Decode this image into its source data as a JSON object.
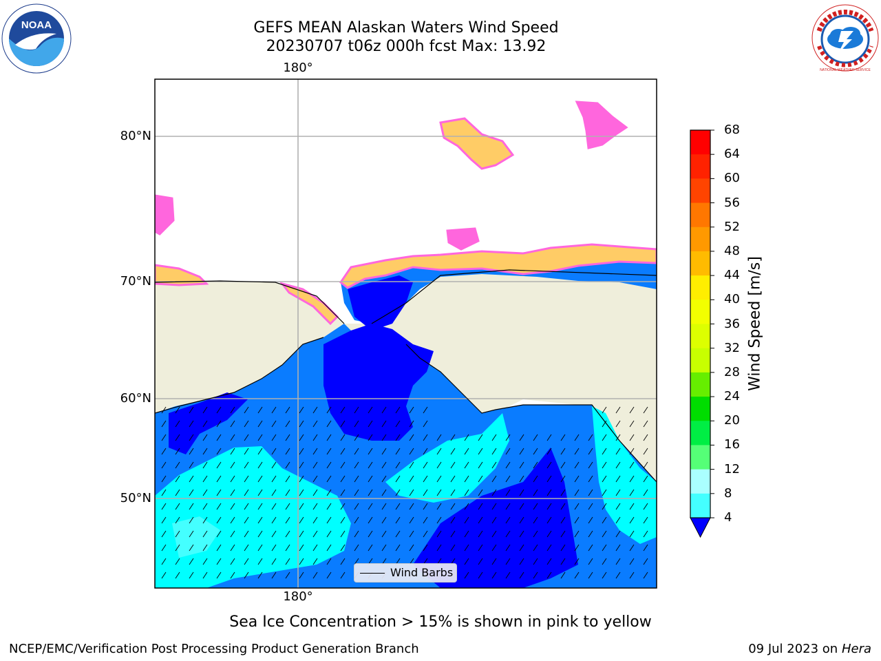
{
  "header": {
    "title_line1": "GEFS MEAN Alaskan Waters Wind Speed",
    "title_line2": "20230707 t06z 000h fcst   Max: 13.92"
  },
  "logos": {
    "noaa_text": "NOAA",
    "nws_text": "NATIONAL WEATHER SERVICE"
  },
  "map": {
    "lat_labels": [
      "80°N",
      "70°N",
      "60°N",
      "50°N"
    ],
    "lon_label_top": "180°",
    "lon_label_bottom": "180°",
    "legend_label": "Wind Barbs",
    "colors": {
      "land": "#efeedb",
      "ocean_4_8": "#0a7cff",
      "ocean_below_4": "#0000ff",
      "ocean_8_12": "#00ffff",
      "ocean_12_16": "#44ffff",
      "sea_ice_pink": "#ff66dd",
      "sea_ice_yellow": "#ffcc66",
      "grid": "#b0b0b0"
    }
  },
  "colorbar": {
    "title": "Wind Speed [m/s]",
    "ticks": [
      "68",
      "64",
      "60",
      "56",
      "52",
      "48",
      "44",
      "40",
      "36",
      "32",
      "28",
      "24",
      "20",
      "16",
      "12",
      "8",
      "4"
    ],
    "colors": [
      "#ff0000",
      "#ff2200",
      "#ff4400",
      "#ff7700",
      "#ff9900",
      "#ffbb00",
      "#ffee00",
      "#f2ff00",
      "#ddff00",
      "#c8ff00",
      "#66ee00",
      "#00dd00",
      "#00ee44",
      "#55ff77",
      "#aaffff",
      "#44ffff",
      "#00ffff",
      "#0a7cff"
    ],
    "under_color": "#0000ff"
  },
  "notes": {
    "ice_note": "Sea Ice Concentration > 15% is shown in pink to yellow",
    "credit": "NCEP/EMC/Verification Post Processing Product Generation Branch",
    "date": "09 Jul 2023 on",
    "machine": "Hera"
  }
}
